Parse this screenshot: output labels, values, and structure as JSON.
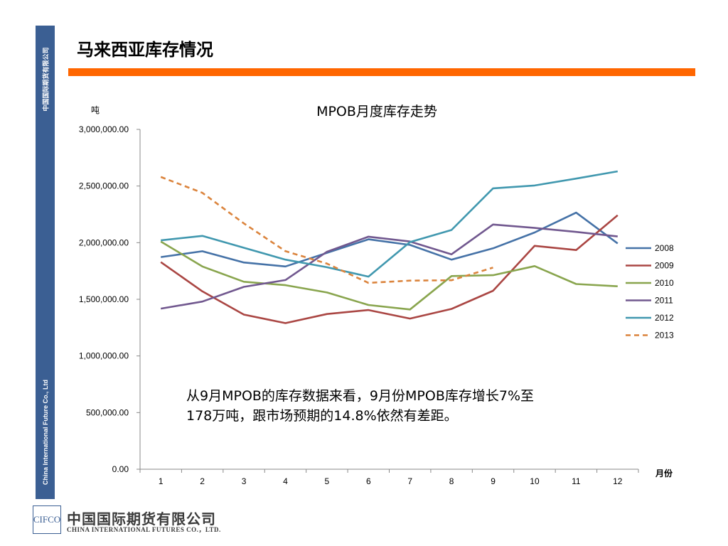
{
  "sidebar": {
    "company_cn": "中国国际期货有限公司",
    "company_en": "China International Future Co., Ltd",
    "color": "#3b5f93"
  },
  "page": {
    "title": "马来西亚库存情况",
    "rule_color": "#ff6600"
  },
  "annotation": {
    "line1": "从9月MPOB的库存数据来看，9月份MPOB库存增长7%至",
    "line2": "178万吨，跟市场预期的14.8%依然有差距。"
  },
  "footer": {
    "logo_text": "CIFCO",
    "company_cn": "中国国际期货有限公司",
    "company_en": "CHINA INTERNATIONAL FUTURES CO.，LTD."
  },
  "chart_data": {
    "type": "line",
    "title": "MPOB月度库存走势",
    "ylabel": "吨",
    "xlabel": "月份",
    "ylim": [
      0,
      3000000
    ],
    "yticks": [
      0,
      500000,
      1000000,
      1500000,
      2000000,
      2500000,
      3000000
    ],
    "ytick_labels": [
      "0.00",
      "500,000.00",
      "1,000,000.00",
      "1,500,000.00",
      "2,000,000.00",
      "2,500,000.00",
      "3,000,000.00"
    ],
    "categories": [
      "1",
      "2",
      "3",
      "4",
      "5",
      "6",
      "7",
      "8",
      "9",
      "10",
      "11",
      "12"
    ],
    "legend_position": "right",
    "grid": false,
    "series": [
      {
        "name": "2008",
        "color": "#4572a7",
        "dashed": false,
        "values": [
          1873000,
          1924000,
          1825000,
          1790000,
          1910000,
          2030000,
          1980000,
          1850000,
          1950000,
          2090000,
          2265000,
          1993000
        ]
      },
      {
        "name": "2009",
        "color": "#aa4643",
        "dashed": false,
        "values": [
          1828000,
          1570000,
          1365000,
          1290000,
          1370000,
          1405000,
          1330000,
          1415000,
          1575000,
          1972000,
          1935000,
          2242000
        ]
      },
      {
        "name": "2010",
        "color": "#89a54e",
        "dashed": false,
        "values": [
          2010000,
          1790000,
          1655000,
          1625000,
          1560000,
          1450000,
          1410000,
          1705000,
          1713000,
          1793000,
          1635000,
          1615000
        ]
      },
      {
        "name": "2011",
        "color": "#71588f",
        "dashed": false,
        "values": [
          1418000,
          1480000,
          1610000,
          1670000,
          1920000,
          2053000,
          2010000,
          1897000,
          2160000,
          2130000,
          2095000,
          2055000
        ]
      },
      {
        "name": "2012",
        "color": "#4198af",
        "dashed": false,
        "values": [
          2020000,
          2060000,
          1955000,
          1850000,
          1783000,
          1700000,
          2005000,
          2112000,
          2480000,
          2505000,
          2566000,
          2630000
        ]
      },
      {
        "name": "2013",
        "color": "#db843d",
        "dashed": true,
        "values": [
          2580000,
          2440000,
          2170000,
          1925000,
          1815000,
          1645000,
          1665000,
          1668000,
          1780000,
          null,
          null,
          null
        ]
      }
    ]
  }
}
